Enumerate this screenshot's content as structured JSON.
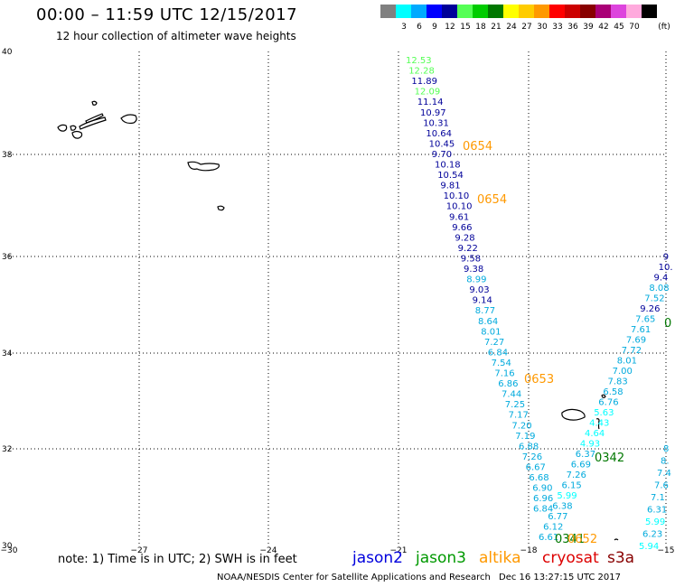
{
  "header": {
    "title": "00:00 – 11:59 UTC 12/15/2017",
    "subtitle": "12 hour collection of altimeter wave heights"
  },
  "legend": {
    "unit": "(ft)",
    "items": [
      {
        "label": "",
        "color": "#808080"
      },
      {
        "label": "3",
        "color": "#00ffff"
      },
      {
        "label": "6",
        "color": "#00aaff"
      },
      {
        "label": "9",
        "color": "#0000ff"
      },
      {
        "label": "12",
        "color": "#000099"
      },
      {
        "label": "15",
        "color": "#55ff55"
      },
      {
        "label": "18",
        "color": "#00cc00"
      },
      {
        "label": "21",
        "color": "#007700"
      },
      {
        "label": "24",
        "color": "#ffff00"
      },
      {
        "label": "27",
        "color": "#ffcc00"
      },
      {
        "label": "30",
        "color": "#ff9900"
      },
      {
        "label": "33",
        "color": "#ff0000"
      },
      {
        "label": "36",
        "color": "#cc0000"
      },
      {
        "label": "39",
        "color": "#880000"
      },
      {
        "label": "42",
        "color": "#aa0077"
      },
      {
        "label": "45",
        "color": "#dd44dd"
      },
      {
        "label": "70",
        "color": "#ffaadd"
      },
      {
        "label": "",
        "color": "#000000"
      }
    ]
  },
  "axes": {
    "lon_ticks": [
      "−30",
      "−27",
      "−24",
      "−21",
      "−18",
      "−15"
    ],
    "lat_ticks": [
      "40",
      "38",
      "36",
      "34",
      "32",
      "30"
    ]
  },
  "tracks": {
    "track_a": [
      "12.53",
      "12.28",
      "11.89",
      "12.09",
      "11.14",
      "10.97",
      "10.31",
      "10.64",
      "10.45",
      "9.70",
      "10.18",
      "10.54",
      "9.81",
      "10.10",
      "10.10",
      "9.61",
      "9.66",
      "9.28",
      "9.22",
      "9.58",
      "9.38",
      "8.99",
      "9.03",
      "9.14",
      "8.77",
      "8.64",
      "8.01",
      "7.27",
      "6.84",
      "7.54",
      "7.16",
      "6.86",
      "7.44",
      "7.25",
      "7.17",
      "7.20",
      "7.19",
      "6.88",
      "7.26",
      "6.67",
      "6.68",
      "6.90",
      "6.96",
      "6.84"
    ],
    "track_b": [
      "6.61",
      "6.12",
      "6.77",
      "6.38",
      "5.99",
      "6.15",
      "7.26",
      "6.69",
      "6.37",
      "4.93",
      "4.64",
      "4.43",
      "5.63",
      "6.76",
      "6.58",
      "7.83",
      "7.00",
      "8.01",
      "7.72",
      "7.69",
      "7.61",
      "7.65",
      "9.26",
      "7.52",
      "8.08",
      "9.4",
      "10.",
      "9"
    ],
    "track_c": [
      "8",
      "8.",
      "7.4",
      "7.6",
      "7.1",
      "6.31",
      "5.99",
      "6.23",
      "5.94"
    ],
    "times": [
      {
        "text": "0654",
        "color": "#ff9900"
      },
      {
        "text": "0654",
        "color": "#ff9900"
      },
      {
        "text": "0653",
        "color": "#ff9900"
      },
      {
        "text": "0342",
        "color": "#007700"
      },
      {
        "text": "0341",
        "color": "#007700"
      },
      {
        "text": "0652",
        "color": "#ff9900"
      },
      {
        "text": "0",
        "color": "#007700"
      }
    ]
  },
  "footer": {
    "note": "note: 1) Time is in UTC; 2) SWH is in feet",
    "satellites": [
      {
        "name": "jason2",
        "color": "#0000dd"
      },
      {
        "name": "jason3",
        "color": "#009900"
      },
      {
        "name": "altika",
        "color": "#ff9900"
      },
      {
        "name": "cryosat",
        "color": "#dd0000"
      },
      {
        "name": "s3a",
        "color": "#880000"
      }
    ],
    "credit": "NOAA/NESDIS Center for Satellite Applications and Research",
    "stamp": "Dec 16 13:27:15 UTC 2017"
  }
}
